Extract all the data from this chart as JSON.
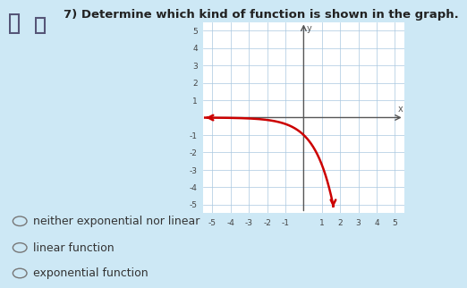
{
  "title": "7) Determine which kind of function is shown in the graph.",
  "title_fontsize": 9.5,
  "bg_color": "#cde8f5",
  "graph_bg": "#ffffff",
  "curve_color": "#cc0000",
  "axis_color": "#555555",
  "grid_color": "#aac8e0",
  "xlim": [
    -5.5,
    5.5
  ],
  "ylim": [
    -5.5,
    5.5
  ],
  "xticks": [
    -5,
    -4,
    -3,
    -2,
    -1,
    1,
    2,
    3,
    4,
    5
  ],
  "yticks": [
    -5,
    -4,
    -3,
    -2,
    -1,
    1,
    2,
    3,
    4,
    5
  ],
  "choices": [
    "neither exponential nor linear",
    "linear function",
    "exponential function"
  ],
  "choice_color": "#333333",
  "choice_fontsize": 9
}
